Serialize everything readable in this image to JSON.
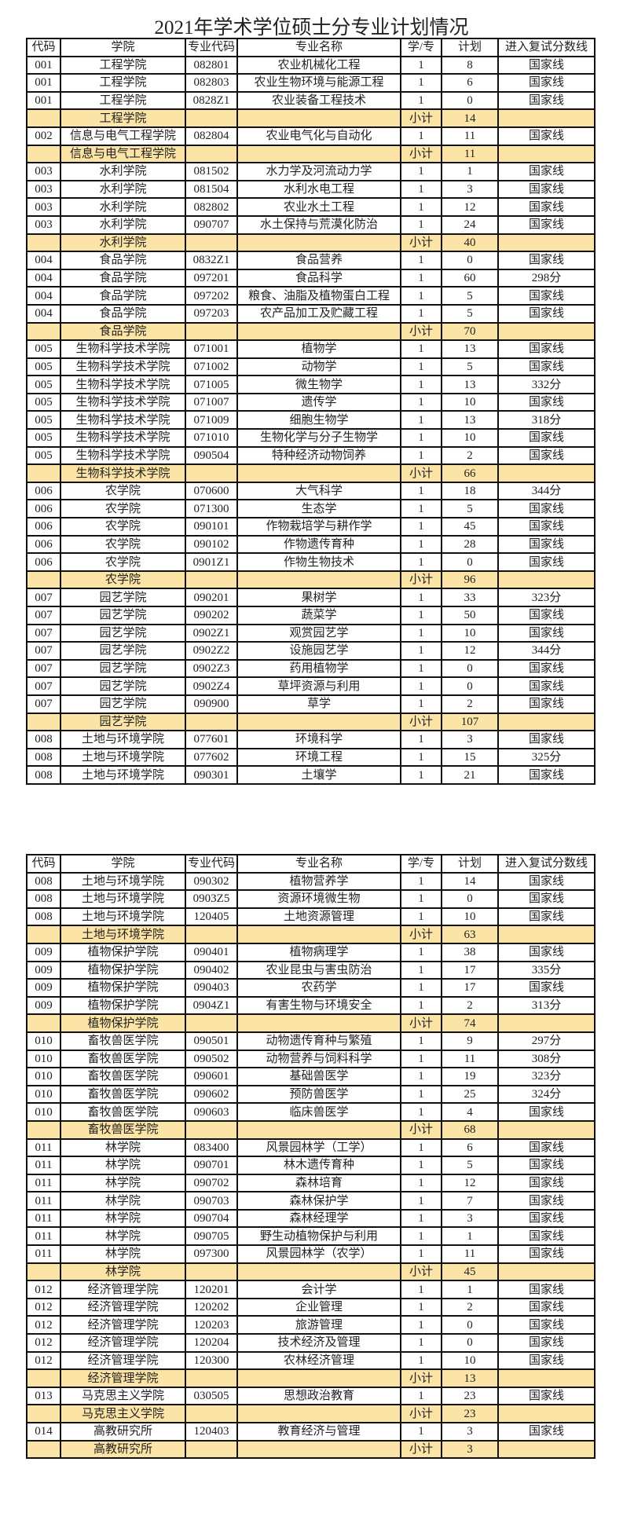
{
  "title": "2021年学术学位硕士分专业计划情况",
  "colors": {
    "subtotal_bg": "#fce3a6",
    "border": "#111111"
  },
  "headers": [
    "代码",
    "学院",
    "专业代码",
    "专业名称",
    "学/专",
    "计划",
    "进入复试分数线"
  ],
  "tables": [
    [
      [
        "001",
        "工程学院",
        "082801",
        "农业机械化工程",
        "1",
        "8",
        "国家线"
      ],
      [
        "001",
        "工程学院",
        "082803",
        "农业生物环境与能源工程",
        "1",
        "6",
        "国家线"
      ],
      [
        "001",
        "工程学院",
        "0828Z1",
        "农业装备工程技术",
        "1",
        "0",
        "国家线"
      ],
      [
        "",
        "工程学院",
        "",
        "",
        "小计",
        "14",
        ""
      ],
      [
        "002",
        "信息与电气工程学院",
        "082804",
        "农业电气化与自动化",
        "1",
        "11",
        "国家线"
      ],
      [
        "",
        "信息与电气工程学院",
        "",
        "",
        "小计",
        "11",
        ""
      ],
      [
        "003",
        "水利学院",
        "081502",
        "水力学及河流动力学",
        "1",
        "1",
        "国家线"
      ],
      [
        "003",
        "水利学院",
        "081504",
        "水利水电工程",
        "1",
        "3",
        "国家线"
      ],
      [
        "003",
        "水利学院",
        "082802",
        "农业水土工程",
        "1",
        "12",
        "国家线"
      ],
      [
        "003",
        "水利学院",
        "090707",
        "水土保持与荒漠化防治",
        "1",
        "24",
        "国家线"
      ],
      [
        "",
        "水利学院",
        "",
        "",
        "小计",
        "40",
        ""
      ],
      [
        "004",
        "食品学院",
        "0832Z1",
        "食品营养",
        "1",
        "0",
        "国家线"
      ],
      [
        "004",
        "食品学院",
        "097201",
        "食品科学",
        "1",
        "60",
        "298分"
      ],
      [
        "004",
        "食品学院",
        "097202",
        "粮食、油脂及植物蛋白工程",
        "1",
        "5",
        "国家线"
      ],
      [
        "004",
        "食品学院",
        "097203",
        "农产品加工及贮藏工程",
        "1",
        "5",
        "国家线"
      ],
      [
        "",
        "食品学院",
        "",
        "",
        "小计",
        "70",
        ""
      ],
      [
        "005",
        "生物科学技术学院",
        "071001",
        "植物学",
        "1",
        "13",
        "国家线"
      ],
      [
        "005",
        "生物科学技术学院",
        "071002",
        "动物学",
        "1",
        "5",
        "国家线"
      ],
      [
        "005",
        "生物科学技术学院",
        "071005",
        "微生物学",
        "1",
        "13",
        "332分"
      ],
      [
        "005",
        "生物科学技术学院",
        "071007",
        "遗传学",
        "1",
        "10",
        "国家线"
      ],
      [
        "005",
        "生物科学技术学院",
        "071009",
        "细胞生物学",
        "1",
        "13",
        "318分"
      ],
      [
        "005",
        "生物科学技术学院",
        "071010",
        "生物化学与分子生物学",
        "1",
        "10",
        "国家线"
      ],
      [
        "005",
        "生物科学技术学院",
        "090504",
        "特种经济动物饲养",
        "1",
        "2",
        "国家线"
      ],
      [
        "",
        "生物科学技术学院",
        "",
        "",
        "小计",
        "66",
        ""
      ],
      [
        "006",
        "农学院",
        "070600",
        "大气科学",
        "1",
        "18",
        "344分"
      ],
      [
        "006",
        "农学院",
        "071300",
        "生态学",
        "1",
        "5",
        "国家线"
      ],
      [
        "006",
        "农学院",
        "090101",
        "作物栽培学与耕作学",
        "1",
        "45",
        "国家线"
      ],
      [
        "006",
        "农学院",
        "090102",
        "作物遗传育种",
        "1",
        "28",
        "国家线"
      ],
      [
        "006",
        "农学院",
        "0901Z1",
        "作物生物技术",
        "1",
        "0",
        "国家线"
      ],
      [
        "",
        "农学院",
        "",
        "",
        "小计",
        "96",
        ""
      ],
      [
        "007",
        "园艺学院",
        "090201",
        "果树学",
        "1",
        "33",
        "323分"
      ],
      [
        "007",
        "园艺学院",
        "090202",
        "蔬菜学",
        "1",
        "50",
        "国家线"
      ],
      [
        "007",
        "园艺学院",
        "0902Z1",
        "观赏园艺学",
        "1",
        "10",
        "国家线"
      ],
      [
        "007",
        "园艺学院",
        "0902Z2",
        "设施园艺学",
        "1",
        "12",
        "344分"
      ],
      [
        "007",
        "园艺学院",
        "0902Z3",
        "药用植物学",
        "1",
        "0",
        "国家线"
      ],
      [
        "007",
        "园艺学院",
        "0902Z4",
        "草坪资源与利用",
        "1",
        "0",
        "国家线"
      ],
      [
        "007",
        "园艺学院",
        "090900",
        "草学",
        "1",
        "2",
        "国家线"
      ],
      [
        "",
        "园艺学院",
        "",
        "",
        "小计",
        "107",
        ""
      ],
      [
        "008",
        "土地与环境学院",
        "077601",
        "环境科学",
        "1",
        "3",
        "国家线"
      ],
      [
        "008",
        "土地与环境学院",
        "077602",
        "环境工程",
        "1",
        "15",
        "325分"
      ],
      [
        "008",
        "土地与环境学院",
        "090301",
        "土壤学",
        "1",
        "21",
        "国家线"
      ]
    ],
    [
      [
        "008",
        "土地与环境学院",
        "090302",
        "植物营养学",
        "1",
        "14",
        "国家线"
      ],
      [
        "008",
        "土地与环境学院",
        "0903Z5",
        "资源环境微生物",
        "1",
        "0",
        "国家线"
      ],
      [
        "008",
        "土地与环境学院",
        "120405",
        "土地资源管理",
        "1",
        "10",
        "国家线"
      ],
      [
        "",
        "土地与环境学院",
        "",
        "",
        "小计",
        "63",
        ""
      ],
      [
        "009",
        "植物保护学院",
        "090401",
        "植物病理学",
        "1",
        "38",
        "国家线"
      ],
      [
        "009",
        "植物保护学院",
        "090402",
        "农业昆虫与害虫防治",
        "1",
        "17",
        "335分"
      ],
      [
        "009",
        "植物保护学院",
        "090403",
        "农药学",
        "1",
        "17",
        "国家线"
      ],
      [
        "009",
        "植物保护学院",
        "0904Z1",
        "有害生物与环境安全",
        "1",
        "2",
        "313分"
      ],
      [
        "",
        "植物保护学院",
        "",
        "",
        "小计",
        "74",
        ""
      ],
      [
        "010",
        "畜牧兽医学院",
        "090501",
        "动物遗传育种与繁殖",
        "1",
        "9",
        "297分"
      ],
      [
        "010",
        "畜牧兽医学院",
        "090502",
        "动物营养与饲料科学",
        "1",
        "11",
        "308分"
      ],
      [
        "010",
        "畜牧兽医学院",
        "090601",
        "基础兽医学",
        "1",
        "19",
        "323分"
      ],
      [
        "010",
        "畜牧兽医学院",
        "090602",
        "预防兽医学",
        "1",
        "25",
        "324分"
      ],
      [
        "010",
        "畜牧兽医学院",
        "090603",
        "临床兽医学",
        "1",
        "4",
        "国家线"
      ],
      [
        "",
        "畜牧兽医学院",
        "",
        "",
        "小计",
        "68",
        ""
      ],
      [
        "011",
        "林学院",
        "083400",
        "风景园林学（工学）",
        "1",
        "6",
        "国家线"
      ],
      [
        "011",
        "林学院",
        "090701",
        "林木遗传育种",
        "1",
        "5",
        "国家线"
      ],
      [
        "011",
        "林学院",
        "090702",
        "森林培育",
        "1",
        "12",
        "国家线"
      ],
      [
        "011",
        "林学院",
        "090703",
        "森林保护学",
        "1",
        "7",
        "国家线"
      ],
      [
        "011",
        "林学院",
        "090704",
        "森林经理学",
        "1",
        "3",
        "国家线"
      ],
      [
        "011",
        "林学院",
        "090705",
        "野生动植物保护与利用",
        "1",
        "1",
        "国家线"
      ],
      [
        "011",
        "林学院",
        "097300",
        "风景园林学（农学）",
        "1",
        "11",
        "国家线"
      ],
      [
        "",
        "林学院",
        "",
        "",
        "小计",
        "45",
        ""
      ],
      [
        "012",
        "经济管理学院",
        "120201",
        "会计学",
        "1",
        "1",
        "国家线"
      ],
      [
        "012",
        "经济管理学院",
        "120202",
        "企业管理",
        "1",
        "2",
        "国家线"
      ],
      [
        "012",
        "经济管理学院",
        "120203",
        "旅游管理",
        "1",
        "0",
        "国家线"
      ],
      [
        "012",
        "经济管理学院",
        "120204",
        "技术经济及管理",
        "1",
        "0",
        "国家线"
      ],
      [
        "012",
        "经济管理学院",
        "120300",
        "农林经济管理",
        "1",
        "10",
        "国家线"
      ],
      [
        "",
        "经济管理学院",
        "",
        "",
        "小计",
        "13",
        ""
      ],
      [
        "013",
        "马克思主义学院",
        "030505",
        "思想政治教育",
        "1",
        "23",
        "国家线"
      ],
      [
        "",
        "马克思主义学院",
        "",
        "",
        "小计",
        "23",
        ""
      ],
      [
        "014",
        "高教研究所",
        "120403",
        "教育经济与管理",
        "1",
        "3",
        "国家线"
      ],
      [
        "",
        "高教研究所",
        "",
        "",
        "小计",
        "3",
        ""
      ]
    ]
  ]
}
